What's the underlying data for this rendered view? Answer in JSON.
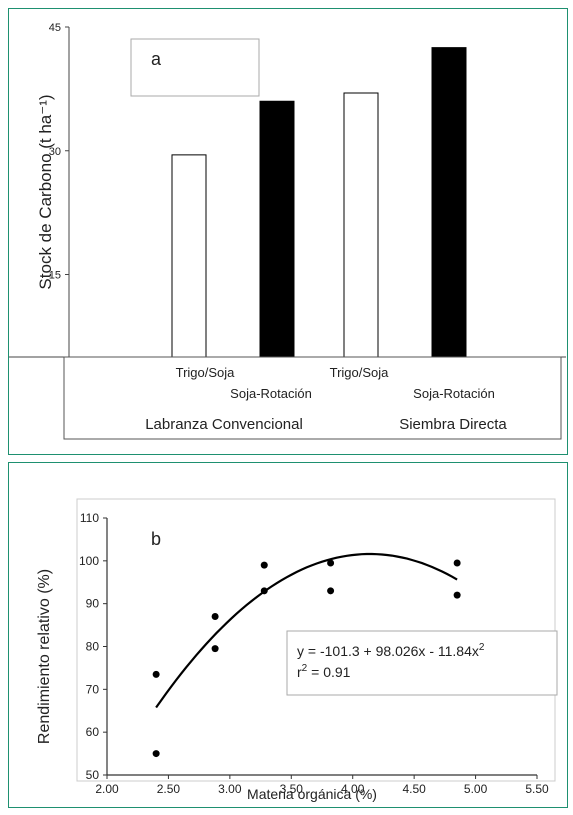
{
  "colors": {
    "frame": "#1e9070",
    "bar_solid": "#000000",
    "bar_open": "#ffffff",
    "text": "#222222"
  },
  "chart_data": [
    {
      "type": "bar",
      "panel_label": "a",
      "ylabel": "Stock de Carbono (t ha⁻¹)",
      "ylim": [
        5,
        45
      ],
      "yticks": [
        "15",
        "30",
        "45"
      ],
      "categories": [
        "Trigo/Soja",
        "Soja-Rotación",
        "Trigo/Soja",
        "Soja-Rotación"
      ],
      "groups": [
        "Labranza Convencional",
        "Siembra Directa"
      ],
      "values": [
        29.5,
        36.0,
        37.0,
        42.5
      ],
      "bar_fill": [
        "open",
        "solid",
        "open",
        "solid"
      ],
      "legend": "none",
      "grid": false
    },
    {
      "type": "scatter",
      "panel_label": "b",
      "xlabel": "Materia orgánica (%)",
      "ylabel": "Rendimiento relativo (%)",
      "xlim": [
        2.0,
        5.5
      ],
      "ylim": [
        50,
        110
      ],
      "xticks": [
        "2.00",
        "2.50",
        "3.00",
        "3.50",
        "4.00",
        "4.50",
        "5.00",
        "5.50"
      ],
      "yticks": [
        "50",
        "60",
        "70",
        "80",
        "90",
        "100",
        "110"
      ],
      "points": [
        {
          "x": 2.4,
          "y": 73.5
        },
        {
          "x": 2.4,
          "y": 55.0
        },
        {
          "x": 2.88,
          "y": 87.0
        },
        {
          "x": 2.88,
          "y": 79.5
        },
        {
          "x": 3.28,
          "y": 99.0
        },
        {
          "x": 3.28,
          "y": 93.0
        },
        {
          "x": 3.82,
          "y": 99.5
        },
        {
          "x": 3.82,
          "y": 93.0
        },
        {
          "x": 4.85,
          "y": 99.5
        },
        {
          "x": 4.85,
          "y": 92.0
        }
      ],
      "fit": {
        "intercept": -101.3,
        "b1": 98.026,
        "b2": -11.84,
        "xrange": [
          2.4,
          4.85
        ]
      },
      "equation": "y = -101.3 + 98.026x - 11.84x",
      "equation_sup": "2",
      "r2_label": "r",
      "r2_text": " = 0.91",
      "grid": false
    }
  ]
}
